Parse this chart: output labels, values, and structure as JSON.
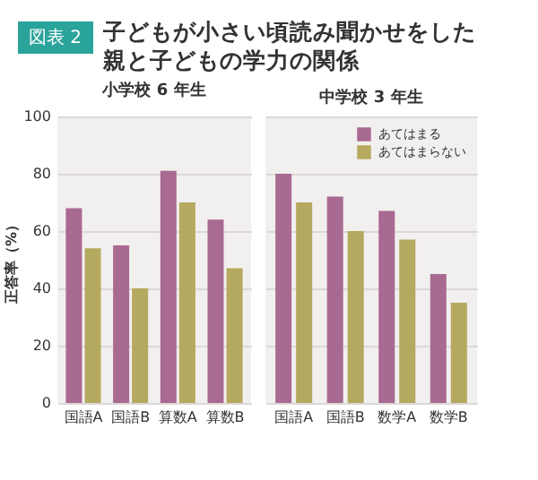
{
  "chart_data": [
    {
      "type": "bar",
      "title": "子どもが小さい頃読み聞かせをした親と子どもの学力の関係",
      "subtitle": "小学校 6 年生",
      "annotations": [
        "図表 2"
      ],
      "ylabel": "正答率（%）",
      "categories": [
        "国語A",
        "国語B",
        "算数A",
        "算数B"
      ],
      "series": [
        {
          "color": "#a96a91",
          "values": [
            68,
            55,
            81,
            64
          ]
        },
        {
          "color": "#b5a95f",
          "values": [
            54,
            40,
            70,
            47
          ]
        }
      ],
      "ylim": [
        0,
        100
      ],
      "yticks": [
        0,
        20,
        40,
        60,
        80,
        100
      ],
      "grid": "y"
    },
    {
      "type": "bar",
      "title": "中学校 3 年生",
      "categories": [
        "国語A",
        "国語B",
        "数学A",
        "数学B"
      ],
      "series": [
        {
          "name": "あてはまる",
          "color": "#a96a91",
          "values": [
            80,
            72,
            67,
            45
          ]
        },
        {
          "name": "あてはまらない",
          "color": "#b5a95f",
          "values": [
            70,
            60,
            57,
            35
          ]
        }
      ],
      "ylim": [
        0,
        100
      ],
      "yticks": [
        0,
        20,
        40,
        60,
        80,
        100
      ],
      "grid": "y",
      "tick_labels": "x",
      "legend": "top right"
    }
  ]
}
